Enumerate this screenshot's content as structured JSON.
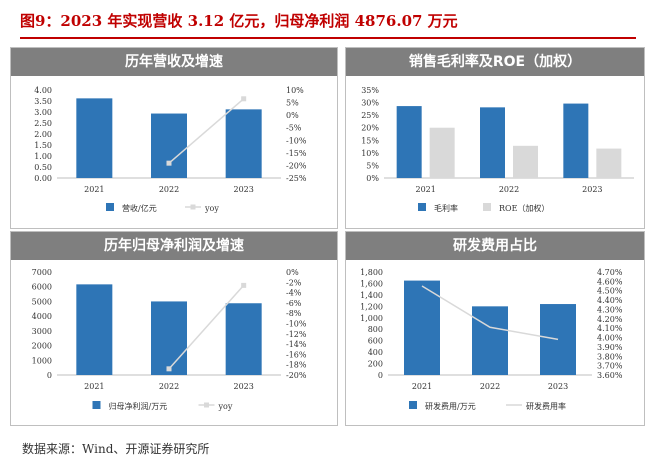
{
  "title": "图9：2023 年实现营收 3.12 亿元，归母净利润 4876.07 万元",
  "source": "数据来源：Wind、开源证券研究所",
  "chart_data": [
    {
      "type": "bar",
      "title": "历年营收及增速",
      "categories": [
        "2021",
        "2022",
        "2023"
      ],
      "ylim": [
        0,
        4.0
      ],
      "y_ticks": [
        "4.00",
        "3.50",
        "3.00",
        "2.50",
        "2.00",
        "1.50",
        "1.00",
        "0.50",
        "0.00"
      ],
      "ylim_right": [
        -25,
        10
      ],
      "y_ticks_right": [
        "10%",
        "5%",
        "0%",
        "-5%",
        "-10%",
        "-15%",
        "-20%",
        "-25%"
      ],
      "series": [
        {
          "name": "营收/亿元",
          "kind": "bar",
          "axis": "left",
          "color": "#2e75b6",
          "values": [
            3.62,
            2.93,
            3.12
          ]
        },
        {
          "name": "yoy",
          "kind": "line",
          "axis": "right",
          "color": "#d9d9d9",
          "values": [
            null,
            -19.1,
            6.5
          ]
        }
      ],
      "legend": "bottom"
    },
    {
      "type": "bar",
      "title": "销售毛利率及ROE（加权）",
      "categories": [
        "2021",
        "2022",
        "2023"
      ],
      "ylim": [
        0,
        35
      ],
      "y_ticks": [
        "35%",
        "30%",
        "25%",
        "20%",
        "15%",
        "10%",
        "5%",
        "0%"
      ],
      "series": [
        {
          "name": "毛利率",
          "kind": "bar",
          "axis": "left",
          "color": "#2e75b6",
          "values": [
            28.6,
            28.1,
            29.6
          ]
        },
        {
          "name": "ROE（加权）",
          "kind": "bar",
          "axis": "left",
          "color": "#d9d9d9",
          "values": [
            20.0,
            12.8,
            11.7
          ]
        }
      ],
      "legend": "bottom"
    },
    {
      "type": "bar",
      "title": "历年归母净利润及增速",
      "categories": [
        "2021",
        "2022",
        "2023"
      ],
      "ylim": [
        0,
        7000
      ],
      "y_ticks": [
        "7000",
        "6000",
        "5000",
        "4000",
        "3000",
        "2000",
        "1000",
        "0"
      ],
      "ylim_right": [
        -20,
        0
      ],
      "y_ticks_right": [
        "0%",
        "-2%",
        "-4%",
        "-6%",
        "-8%",
        "-10%",
        "-12%",
        "-14%",
        "-16%",
        "-18%",
        "-20%"
      ],
      "series": [
        {
          "name": "归母净利润/万元",
          "kind": "bar",
          "axis": "left",
          "color": "#2e75b6",
          "values": [
            6160,
            5000,
            4876.07
          ]
        },
        {
          "name": "yoy",
          "kind": "line",
          "axis": "right",
          "color": "#d9d9d9",
          "values": [
            null,
            -18.8,
            -2.6
          ]
        }
      ],
      "legend": "bottom"
    },
    {
      "type": "bar",
      "title": "研发费用占比",
      "categories": [
        "2021",
        "2022",
        "2023"
      ],
      "ylim": [
        0,
        1800
      ],
      "y_ticks": [
        "1,800",
        "1,600",
        "1,400",
        "1,200",
        "1,000",
        "800",
        "600",
        "400",
        "200",
        "0"
      ],
      "ylim_right": [
        3.6,
        4.7
      ],
      "y_ticks_right": [
        "4.70%",
        "4.60%",
        "4.50%",
        "4.40%",
        "4.30%",
        "4.20%",
        "4.10%",
        "4.00%",
        "3.90%",
        "3.80%",
        "3.70%",
        "3.60%"
      ],
      "series": [
        {
          "name": "研发费用/万元",
          "kind": "bar",
          "axis": "left",
          "color": "#2e75b6",
          "values": [
            1650,
            1200,
            1240
          ]
        },
        {
          "name": "研发费用率",
          "kind": "line",
          "axis": "right",
          "color": "#d9d9d9",
          "values": [
            4.55,
            4.11,
            3.98
          ]
        }
      ],
      "legend": "bottom"
    }
  ]
}
